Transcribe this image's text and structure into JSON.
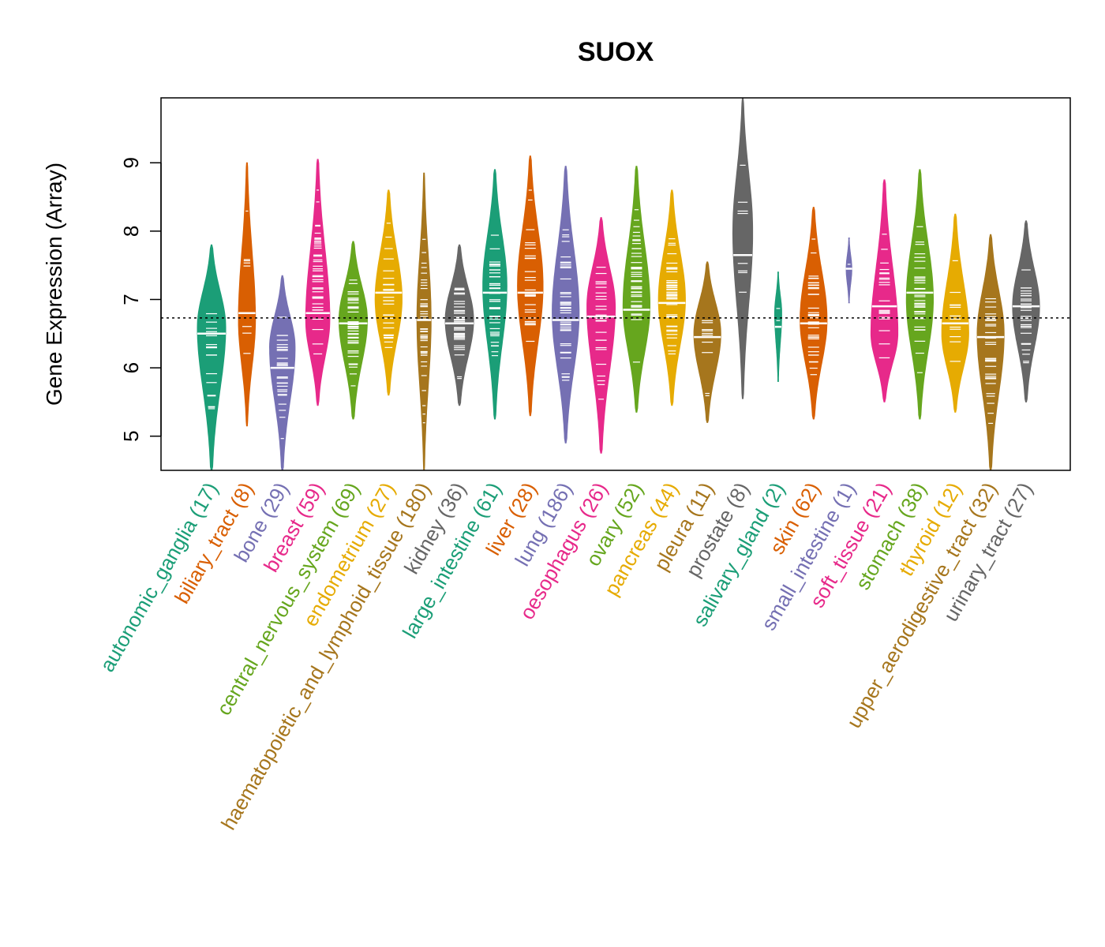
{
  "chart_data": {
    "type": "violin",
    "title": "SUOX",
    "ylabel": "Gene Expression (Array)",
    "xlabel": "",
    "ylim": [
      4.5,
      9.95
    ],
    "yticks": [
      5,
      6,
      7,
      8,
      9
    ],
    "reference_line": 6.73,
    "grid": false,
    "categories": [
      {
        "name": "autonomic_ganglia",
        "count": "(17)",
        "color": "#1B9E77",
        "median": 6.5,
        "min": 4.5,
        "max": 7.8,
        "peak": 6.6,
        "width": 1.0
      },
      {
        "name": "biliary_tract",
        "count": "(8)",
        "color": "#D95F02",
        "median": 6.8,
        "min": 5.15,
        "max": 9.0,
        "peak": 6.7,
        "width": 0.6
      },
      {
        "name": "bone",
        "count": "(29)",
        "color": "#7570B3",
        "median": 6.0,
        "min": 4.5,
        "max": 7.35,
        "peak": 6.3,
        "width": 0.9
      },
      {
        "name": "breast",
        "count": "(59)",
        "color": "#E7298A",
        "median": 6.8,
        "min": 5.45,
        "max": 9.05,
        "peak": 6.7,
        "width": 0.85
      },
      {
        "name": "central_nervous_system",
        "count": "(69)",
        "color": "#66A61E",
        "median": 6.65,
        "min": 5.25,
        "max": 7.85,
        "peak": 6.7,
        "width": 1.0
      },
      {
        "name": "endometrium",
        "count": "(27)",
        "color": "#E6AB02",
        "median": 7.1,
        "min": 5.6,
        "max": 8.6,
        "peak": 7.0,
        "width": 0.95
      },
      {
        "name": "haematopoietic_and_lymphoid_tissue",
        "count": "(180)",
        "color": "#A6761D",
        "median": 6.7,
        "min": 4.5,
        "max": 8.85,
        "peak": 6.7,
        "width": 0.5
      },
      {
        "name": "kidney",
        "count": "(36)",
        "color": "#666666",
        "median": 6.65,
        "min": 5.45,
        "max": 7.8,
        "peak": 6.7,
        "width": 1.0
      },
      {
        "name": "large_intestine",
        "count": "(61)",
        "color": "#1B9E77",
        "median": 7.1,
        "min": 5.25,
        "max": 8.9,
        "peak": 7.2,
        "width": 0.85
      },
      {
        "name": "liver",
        "count": "(28)",
        "color": "#D95F02",
        "median": 7.1,
        "min": 5.3,
        "max": 9.1,
        "peak": 7.2,
        "width": 0.9
      },
      {
        "name": "lung",
        "count": "(186)",
        "color": "#7570B3",
        "median": 6.7,
        "min": 4.9,
        "max": 8.95,
        "peak": 6.8,
        "width": 0.95
      },
      {
        "name": "oesophagus",
        "count": "(26)",
        "color": "#E7298A",
        "median": 6.75,
        "min": 4.75,
        "max": 8.2,
        "peak": 6.9,
        "width": 1.0
      },
      {
        "name": "ovary",
        "count": "(52)",
        "color": "#66A61E",
        "median": 6.85,
        "min": 5.35,
        "max": 8.95,
        "peak": 6.9,
        "width": 0.95
      },
      {
        "name": "pancreas",
        "count": "(44)",
        "color": "#E6AB02",
        "median": 6.95,
        "min": 5.45,
        "max": 8.6,
        "peak": 7.0,
        "width": 0.95
      },
      {
        "name": "pleura",
        "count": "(11)",
        "color": "#A6761D",
        "median": 6.45,
        "min": 5.2,
        "max": 7.55,
        "peak": 6.5,
        "width": 0.95
      },
      {
        "name": "prostate",
        "count": "(8)",
        "color": "#666666",
        "median": 7.65,
        "min": 5.55,
        "max": 9.95,
        "peak": 8.0,
        "width": 0.7
      },
      {
        "name": "salivary_gland",
        "count": "(2)",
        "color": "#1B9E77",
        "median": 6.6,
        "min": 5.8,
        "max": 7.4,
        "peak": 6.8,
        "width": 0.25
      },
      {
        "name": "skin",
        "count": "(62)",
        "color": "#D95F02",
        "median": 6.65,
        "min": 5.25,
        "max": 8.35,
        "peak": 6.7,
        "width": 0.95
      },
      {
        "name": "small_intestine",
        "count": "(1)",
        "color": "#7570B3",
        "median": 7.45,
        "min": 6.95,
        "max": 7.9,
        "peak": 7.45,
        "width": 0.2
      },
      {
        "name": "soft_tissue",
        "count": "(21)",
        "color": "#E7298A",
        "median": 6.9,
        "min": 5.5,
        "max": 8.75,
        "peak": 6.5,
        "width": 0.95
      },
      {
        "name": "stomach",
        "count": "(38)",
        "color": "#66A61E",
        "median": 7.1,
        "min": 5.25,
        "max": 8.9,
        "peak": 7.0,
        "width": 0.95
      },
      {
        "name": "thyroid",
        "count": "(12)",
        "color": "#E6AB02",
        "median": 6.65,
        "min": 5.35,
        "max": 8.25,
        "peak": 6.5,
        "width": 0.95
      },
      {
        "name": "upper_aerodigestive_tract",
        "count": "(32)",
        "color": "#A6761D",
        "median": 6.45,
        "min": 4.5,
        "max": 7.95,
        "peak": 6.5,
        "width": 0.95
      },
      {
        "name": "urinary_tract",
        "count": "(27)",
        "color": "#666666",
        "median": 6.9,
        "min": 5.5,
        "max": 8.15,
        "peak": 6.9,
        "width": 0.95
      }
    ]
  }
}
